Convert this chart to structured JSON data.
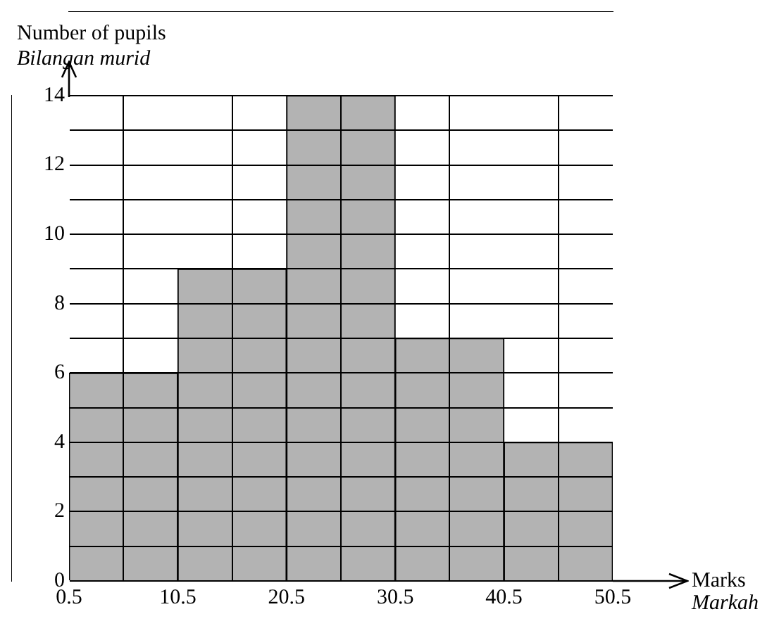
{
  "chart_data": {
    "type": "histogram",
    "xlabel": "Marks\nMarkah",
    "ylabel": "Number of pupils\nBilangan murid",
    "bins": [
      0.5,
      10.5,
      20.5,
      30.5,
      40.5,
      50.5
    ],
    "values": [
      6,
      9,
      14,
      7,
      4
    ],
    "color": "#b3b3b3",
    "xlim": [
      0.5,
      50.5
    ],
    "xticks": [
      0.5,
      10.5,
      20.5,
      30.5,
      40.5,
      50.5
    ],
    "ylim": [
      0,
      14
    ],
    "yticks": [
      0,
      {
        "value": 1,
        "label": null
      },
      2,
      {
        "value": 3,
        "label": null
      },
      4,
      {
        "value": 5,
        "label": null
      },
      6,
      {
        "value": 7,
        "label": null
      },
      8,
      {
        "value": 9,
        "label": null
      },
      10,
      {
        "value": 11,
        "label": null
      },
      12,
      {
        "value": 13,
        "label": null
      },
      14
    ],
    "grid": true
  }
}
